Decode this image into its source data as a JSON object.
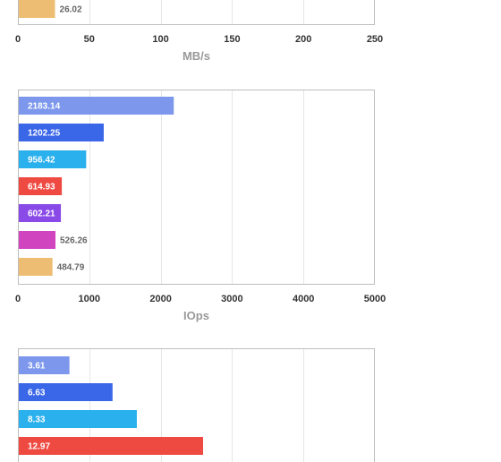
{
  "chart_data": [
    {
      "type": "bar",
      "orientation": "horizontal",
      "partially_visible": true,
      "xlabel": "MB/s",
      "xlim": [
        0,
        250
      ],
      "xticks": [
        "0",
        "50",
        "100",
        "150",
        "200",
        "250"
      ],
      "grid": true,
      "bars": [
        {
          "label": "26.02",
          "value": 26.02,
          "color": "#eebd74"
        }
      ]
    },
    {
      "type": "bar",
      "orientation": "horizontal",
      "xlabel": "IOps",
      "xlim": [
        0,
        5000
      ],
      "xticks": [
        "0",
        "1000",
        "2000",
        "3000",
        "4000",
        "5000"
      ],
      "grid": true,
      "bars": [
        {
          "label": "2183.14",
          "value": 2183.14,
          "color": "#7c97ec"
        },
        {
          "label": "1202.25",
          "value": 1202.25,
          "color": "#3a66e8"
        },
        {
          "label": "956.42",
          "value": 956.42,
          "color": "#2ab0ec"
        },
        {
          "label": "614.93",
          "value": 614.93,
          "color": "#ee4a42"
        },
        {
          "label": "602.21",
          "value": 602.21,
          "color": "#8a4ae8"
        },
        {
          "label": "526.26",
          "value": 526.26,
          "color": "#d044c0"
        },
        {
          "label": "484.79",
          "value": 484.79,
          "color": "#eebd74"
        }
      ]
    },
    {
      "type": "bar",
      "orientation": "horizontal",
      "partially_visible": true,
      "xlim": [
        0,
        25
      ],
      "grid": true,
      "bars": [
        {
          "label": "3.61",
          "value": 3.61,
          "color": "#7c97ec"
        },
        {
          "label": "6.63",
          "value": 6.63,
          "color": "#3a66e8"
        },
        {
          "label": "8.33",
          "value": 8.33,
          "color": "#2ab0ec"
        },
        {
          "label": "12.97",
          "value": 12.97,
          "color": "#ee4a42"
        }
      ]
    }
  ]
}
